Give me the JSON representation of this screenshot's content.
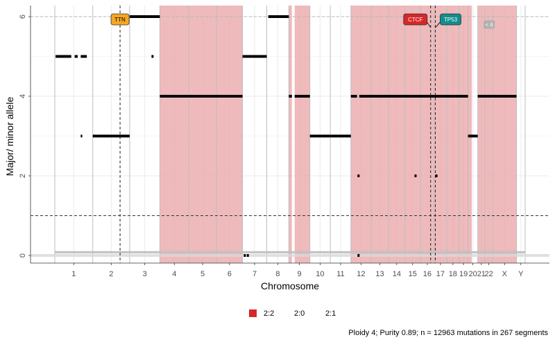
{
  "chart_data": {
    "type": "scatter",
    "xlabel": "Chromosome",
    "ylabel": "Major/ minor allele",
    "ylim": [
      -0.2,
      6.25
    ],
    "yticks": [
      0,
      2,
      4,
      6
    ],
    "ploidy_line": 1,
    "chromosomes": [
      "1",
      "2",
      "3",
      "4",
      "5",
      "6",
      "7",
      "8",
      "9",
      "10",
      "11",
      "12",
      "13",
      "14",
      "15",
      "16",
      "17",
      "18",
      "19",
      "20",
      "21",
      "22",
      "X",
      "Y"
    ],
    "chrom_lengths_mb": [
      249,
      242,
      198,
      190,
      181,
      171,
      159,
      145,
      138,
      134,
      135,
      133,
      114,
      107,
      102,
      90,
      83,
      80,
      59,
      64,
      47,
      51,
      156,
      57
    ],
    "tick_labels": [
      "1",
      "2",
      "3",
      "4",
      "5",
      "6",
      "7",
      "8",
      "9",
      "10",
      "11",
      "12",
      "13",
      "14",
      "15",
      "16",
      "17",
      "18",
      "19",
      "20",
      "21",
      "22",
      "X",
      "Y"
    ],
    "legend": [
      {
        "label": "2:2",
        "color": "#d62728"
      },
      {
        "label": "2:0",
        "color": null
      },
      {
        "label": "2:1",
        "color": null
      }
    ],
    "shaded_regions_2_2": [
      {
        "chrom": "4",
        "from": 0,
        "to": 190
      },
      {
        "chrom": "5",
        "from": 0,
        "to": 181
      },
      {
        "chrom": "6",
        "from": 0,
        "to": 171
      },
      {
        "chrom": "9",
        "from": 0,
        "to": 20
      },
      {
        "chrom": "9",
        "from": 38,
        "to": 138
      },
      {
        "chrom": "12",
        "from": 0,
        "to": 133
      },
      {
        "chrom": "13",
        "from": 0,
        "to": 114
      },
      {
        "chrom": "14",
        "from": 0,
        "to": 107
      },
      {
        "chrom": "15",
        "from": 0,
        "to": 102
      },
      {
        "chrom": "16",
        "from": 0,
        "to": 90
      },
      {
        "chrom": "17",
        "from": 0,
        "to": 83
      },
      {
        "chrom": "18",
        "from": 0,
        "to": 80
      },
      {
        "chrom": "19",
        "from": 0,
        "to": 59
      },
      {
        "chrom": "20",
        "from": 0,
        "to": 25
      },
      {
        "chrom": "21",
        "from": 0,
        "to": 47
      },
      {
        "chrom": "22",
        "from": 0,
        "to": 51
      },
      {
        "chrom": "X",
        "from": 0,
        "to": 156
      }
    ],
    "segments": [
      {
        "chrom": "1",
        "from": 5,
        "to": 108,
        "value": 5
      },
      {
        "chrom": "1",
        "from": 130,
        "to": 150,
        "value": 5
      },
      {
        "chrom": "1",
        "from": 170,
        "to": 210,
        "value": 5
      },
      {
        "chrom": "1",
        "from": 170,
        "to": 180,
        "value": 3
      },
      {
        "chrom": "2",
        "from": 0,
        "to": 20,
        "value": 3
      },
      {
        "chrom": "2",
        "from": 20,
        "to": 242,
        "value": 3
      },
      {
        "chrom": "3",
        "from": 0,
        "to": 198,
        "value": 6
      },
      {
        "chrom": "4",
        "from": 0,
        "to": 190,
        "value": 4
      },
      {
        "chrom": "5",
        "from": 0,
        "to": 181,
        "value": 4
      },
      {
        "chrom": "6",
        "from": 0,
        "to": 171,
        "value": 4
      },
      {
        "chrom": "7",
        "from": 0,
        "to": 159,
        "value": 5
      },
      {
        "chrom": "8",
        "from": 10,
        "to": 145,
        "value": 6
      },
      {
        "chrom": "9",
        "from": 0,
        "to": 20,
        "value": 4
      },
      {
        "chrom": "9",
        "from": 38,
        "to": 138,
        "value": 4
      },
      {
        "chrom": "10",
        "from": 0,
        "to": 134,
        "value": 3
      },
      {
        "chrom": "11",
        "from": 0,
        "to": 135,
        "value": 3
      },
      {
        "chrom": "12",
        "from": 0,
        "to": 40,
        "value": 4
      },
      {
        "chrom": "12",
        "from": 55,
        "to": 133,
        "value": 4
      },
      {
        "chrom": "13",
        "from": 0,
        "to": 114,
        "value": 4
      },
      {
        "chrom": "14",
        "from": 0,
        "to": 107,
        "value": 4
      },
      {
        "chrom": "15",
        "from": 0,
        "to": 102,
        "value": 4
      },
      {
        "chrom": "16",
        "from": 0,
        "to": 90,
        "value": 4
      },
      {
        "chrom": "17",
        "from": 0,
        "to": 83,
        "value": 4
      },
      {
        "chrom": "18",
        "from": 0,
        "to": 80,
        "value": 4
      },
      {
        "chrom": "19",
        "from": 0,
        "to": 59,
        "value": 4
      },
      {
        "chrom": "20",
        "from": 0,
        "to": 64,
        "value": 3
      },
      {
        "chrom": "21",
        "from": 0,
        "to": 47,
        "value": 4
      },
      {
        "chrom": "22",
        "from": 0,
        "to": 51,
        "value": 4
      },
      {
        "chrom": "X",
        "from": 0,
        "to": 156,
        "value": 4
      }
    ],
    "point_segments": [
      {
        "chrom": "3",
        "pos": 150,
        "value": 5
      },
      {
        "chrom": "12",
        "pos": 50,
        "value": 2
      },
      {
        "chrom": "15",
        "pos": 70,
        "value": 2
      },
      {
        "chrom": "17",
        "pos": 15,
        "value": 2
      },
      {
        "chrom": "7",
        "pos": 15,
        "value": 0
      },
      {
        "chrom": "7",
        "pos": 35,
        "value": 0
      },
      {
        "chrom": "12",
        "pos": 50,
        "value": 0
      }
    ],
    "genes": [
      {
        "name": "TTN",
        "chrom": "2",
        "pos": 179,
        "label_color": "#f5a623",
        "text_color": "#000000"
      },
      {
        "name": "CTCF",
        "chrom": "16",
        "pos": 67,
        "label_color": "#d62728",
        "text_color": "#ffffff"
      },
      {
        "name": "TP53",
        "chrom": "17",
        "pos": 7.6,
        "label_color": "#138c8c",
        "text_color": "#ffffff"
      }
    ],
    "marker_label": {
      "text": "< 6",
      "chrom": "22",
      "pos": 10,
      "value": 5.8
    },
    "caption": "Ploidy 4; Purity  0.89; n = 12963 mutations in 267 segments"
  }
}
